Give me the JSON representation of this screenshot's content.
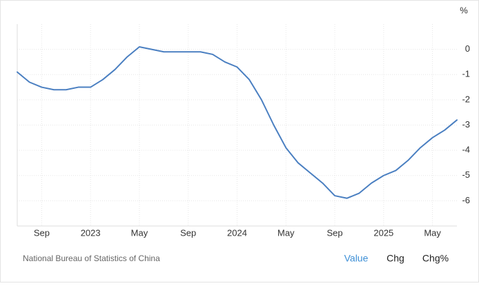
{
  "chart_data": {
    "type": "line",
    "unit": "%",
    "categories": [
      null,
      null,
      "Sep",
      null,
      null,
      null,
      "2023",
      null,
      null,
      null,
      "May",
      null,
      null,
      null,
      "Sep",
      null,
      null,
      null,
      "2024",
      null,
      null,
      null,
      "May",
      null,
      null,
      null,
      "Sep",
      null,
      null,
      null,
      "2025",
      null,
      null,
      null,
      "May",
      null,
      null
    ],
    "values": [
      -0.9,
      -1.3,
      -1.5,
      -1.6,
      -1.6,
      -1.5,
      -1.5,
      -1.2,
      -0.8,
      -0.3,
      0.1,
      0.0,
      -0.1,
      -0.1,
      -0.1,
      -0.1,
      -0.2,
      -0.5,
      -0.7,
      -1.2,
      -2.0,
      -3.0,
      -3.9,
      -4.5,
      -4.9,
      -5.3,
      -5.8,
      -5.9,
      -5.7,
      -5.3,
      -5.0,
      -4.8,
      -4.4,
      -3.9,
      -3.5,
      -3.2,
      -2.8
    ],
    "color": "#4a7fc1",
    "ylim": [
      -7,
      1
    ],
    "yticks": [
      0,
      -1,
      -2,
      -3,
      -4,
      -5,
      -6
    ],
    "grid": true
  },
  "footer": {
    "source": "National Bureau of Statistics of China",
    "tabs": [
      "Value",
      "Chg",
      "Chg%"
    ],
    "active_tab": 0
  }
}
